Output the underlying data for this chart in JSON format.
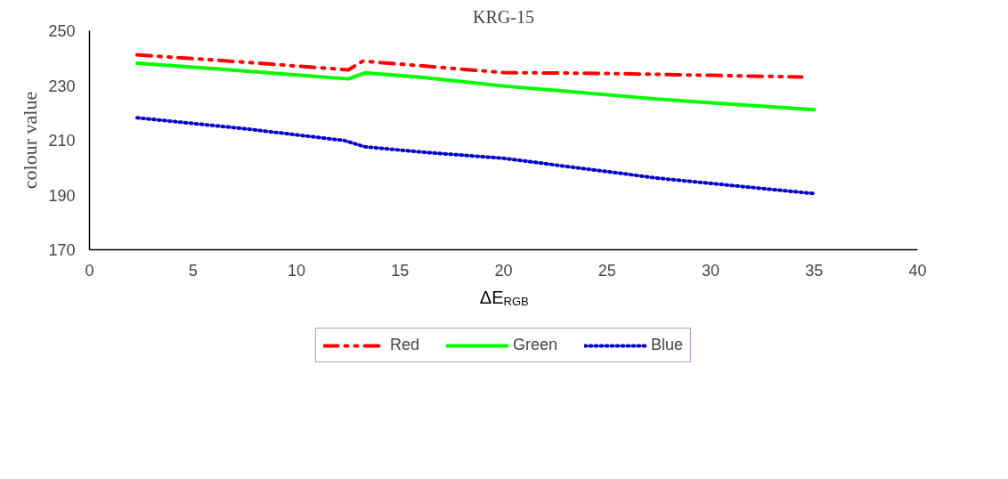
{
  "chart_data": {
    "type": "line",
    "title": "KRG-15",
    "xlabel": "ΔE$_{RGB}$",
    "ylabel": "colour value",
    "xlim": [
      0,
      40
    ],
    "xticks": [
      0,
      5,
      10,
      15,
      20,
      25,
      30,
      35,
      40
    ],
    "ylim": [
      170,
      250
    ],
    "yticks": [
      170,
      190,
      210,
      230,
      250
    ],
    "grid": false,
    "legend": "bottom",
    "marker": "none",
    "series": [
      {
        "name": "Red",
        "color": "#ff0000",
        "line_style": "dashed",
        "x": [
          2.3,
          7.5,
          12.5,
          13.2,
          16,
          20,
          25,
          30,
          34.4
        ],
        "values": [
          241.2,
          238.5,
          235.7,
          238.9,
          237.2,
          234.7,
          234.4,
          233.7,
          233.1
        ]
      },
      {
        "name": "Green",
        "color": "#00ff00",
        "line_style": "solid",
        "x": [
          2.3,
          7.5,
          12.5,
          13.3,
          16,
          20,
          22,
          27.5,
          35
        ],
        "values": [
          238.1,
          235.3,
          232.4,
          234.6,
          233.0,
          229.8,
          228.5,
          225.0,
          221.1
        ]
      },
      {
        "name": "Blue",
        "color": "#0000cc",
        "line_style": "dotted",
        "x": [
          2.3,
          7.5,
          12.3,
          13.3,
          16,
          20,
          27.5,
          35
        ],
        "values": [
          218.2,
          214.2,
          209.9,
          207.6,
          205.7,
          203.4,
          196.1,
          190.5
        ]
      }
    ]
  }
}
